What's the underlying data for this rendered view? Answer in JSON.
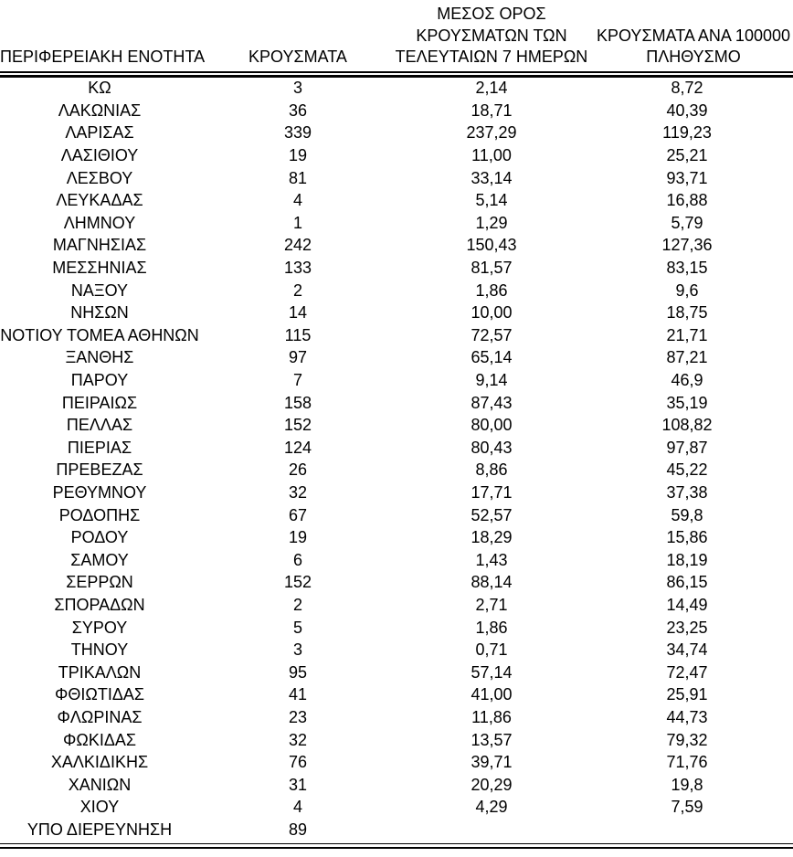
{
  "page": {
    "background_color": "#ffffff",
    "text_color": "#000000",
    "rule_color": "#000000"
  },
  "table": {
    "column_headers": [
      "ΠΕΡΙΦΕΡΕΙΑΚΗ ΕΝΟΤΗΤΑ",
      "ΚΡΟΥΣΜΑΤΑ",
      "ΜΕΣΟΣ ΟΡΟΣ\nΚΡΟΥΣΜΑΤΩΝ ΤΩΝ\nΤΕΛΕΥΤΑΙΩΝ 7 ΗΜΕΡΩΝ",
      "ΚΡΟΥΣΜΑΤΑ ΑΝΑ 100000\nΠΛΗΘΥΣΜΟ"
    ],
    "rows": [
      {
        "region": "ΚΩ",
        "cases": "3",
        "avg_7day": "2,14",
        "per_100k": "8,72"
      },
      {
        "region": "ΛΑΚΩΝΙΑΣ",
        "cases": "36",
        "avg_7day": "18,71",
        "per_100k": "40,39"
      },
      {
        "region": "ΛΑΡΙΣΑΣ",
        "cases": "339",
        "avg_7day": "237,29",
        "per_100k": "119,23"
      },
      {
        "region": "ΛΑΣΙΘΙΟΥ",
        "cases": "19",
        "avg_7day": "11,00",
        "per_100k": "25,21"
      },
      {
        "region": "ΛΕΣΒΟΥ",
        "cases": "81",
        "avg_7day": "33,14",
        "per_100k": "93,71"
      },
      {
        "region": "ΛΕΥΚΑΔΑΣ",
        "cases": "4",
        "avg_7day": "5,14",
        "per_100k": "16,88"
      },
      {
        "region": "ΛΗΜΝΟΥ",
        "cases": "1",
        "avg_7day": "1,29",
        "per_100k": "5,79"
      },
      {
        "region": "ΜΑΓΝΗΣΙΑΣ",
        "cases": "242",
        "avg_7day": "150,43",
        "per_100k": "127,36"
      },
      {
        "region": "ΜΕΣΣΗΝΙΑΣ",
        "cases": "133",
        "avg_7day": "81,57",
        "per_100k": "83,15"
      },
      {
        "region": "ΝΑΞΟΥ",
        "cases": "2",
        "avg_7day": "1,86",
        "per_100k": "9,6"
      },
      {
        "region": "ΝΗΣΩΝ",
        "cases": "14",
        "avg_7day": "10,00",
        "per_100k": "18,75"
      },
      {
        "region": "ΝΟΤΙΟΥ ΤΟΜΕΑ ΑΘΗΝΩΝ",
        "cases": "115",
        "avg_7day": "72,57",
        "per_100k": "21,71"
      },
      {
        "region": "ΞΑΝΘΗΣ",
        "cases": "97",
        "avg_7day": "65,14",
        "per_100k": "87,21"
      },
      {
        "region": "ΠΑΡΟΥ",
        "cases": "7",
        "avg_7day": "9,14",
        "per_100k": "46,9"
      },
      {
        "region": "ΠΕΙΡΑΙΩΣ",
        "cases": "158",
        "avg_7day": "87,43",
        "per_100k": "35,19"
      },
      {
        "region": "ΠΕΛΛΑΣ",
        "cases": "152",
        "avg_7day": "80,00",
        "per_100k": "108,82"
      },
      {
        "region": "ΠΙΕΡΙΑΣ",
        "cases": "124",
        "avg_7day": "80,43",
        "per_100k": "97,87"
      },
      {
        "region": "ΠΡΕΒΕΖΑΣ",
        "cases": "26",
        "avg_7day": "8,86",
        "per_100k": "45,22"
      },
      {
        "region": "ΡΕΘΥΜΝΟΥ",
        "cases": "32",
        "avg_7day": "17,71",
        "per_100k": "37,38"
      },
      {
        "region": "ΡΟΔΟΠΗΣ",
        "cases": "67",
        "avg_7day": "52,57",
        "per_100k": "59,8"
      },
      {
        "region": "ΡΟΔΟΥ",
        "cases": "19",
        "avg_7day": "18,29",
        "per_100k": "15,86"
      },
      {
        "region": "ΣΑΜΟΥ",
        "cases": "6",
        "avg_7day": "1,43",
        "per_100k": "18,19"
      },
      {
        "region": "ΣΕΡΡΩΝ",
        "cases": "152",
        "avg_7day": "88,14",
        "per_100k": "86,15"
      },
      {
        "region": "ΣΠΟΡΑΔΩΝ",
        "cases": "2",
        "avg_7day": "2,71",
        "per_100k": "14,49"
      },
      {
        "region": "ΣΥΡΟΥ",
        "cases": "5",
        "avg_7day": "1,86",
        "per_100k": "23,25"
      },
      {
        "region": "ΤΗΝΟΥ",
        "cases": "3",
        "avg_7day": "0,71",
        "per_100k": "34,74"
      },
      {
        "region": "ΤΡΙΚΑΛΩΝ",
        "cases": "95",
        "avg_7day": "57,14",
        "per_100k": "72,47"
      },
      {
        "region": "ΦΘΙΩΤΙΔΑΣ",
        "cases": "41",
        "avg_7day": "41,00",
        "per_100k": "25,91"
      },
      {
        "region": "ΦΛΩΡΙΝΑΣ",
        "cases": "23",
        "avg_7day": "11,86",
        "per_100k": "44,73"
      },
      {
        "region": "ΦΩΚΙΔΑΣ",
        "cases": "32",
        "avg_7day": "13,57",
        "per_100k": "79,32"
      },
      {
        "region": "ΧΑΛΚΙΔΙΚΗΣ",
        "cases": "76",
        "avg_7day": "39,71",
        "per_100k": "71,76"
      },
      {
        "region": "ΧΑΝΙΩΝ",
        "cases": "31",
        "avg_7day": "20,29",
        "per_100k": "19,8"
      },
      {
        "region": "ΧΙΟΥ",
        "cases": "4",
        "avg_7day": "4,29",
        "per_100k": "7,59"
      },
      {
        "region": "ΥΠΟ ΔΙΕΡΕΥΝΗΣΗ",
        "cases": "89",
        "avg_7day": "",
        "per_100k": ""
      }
    ]
  }
}
